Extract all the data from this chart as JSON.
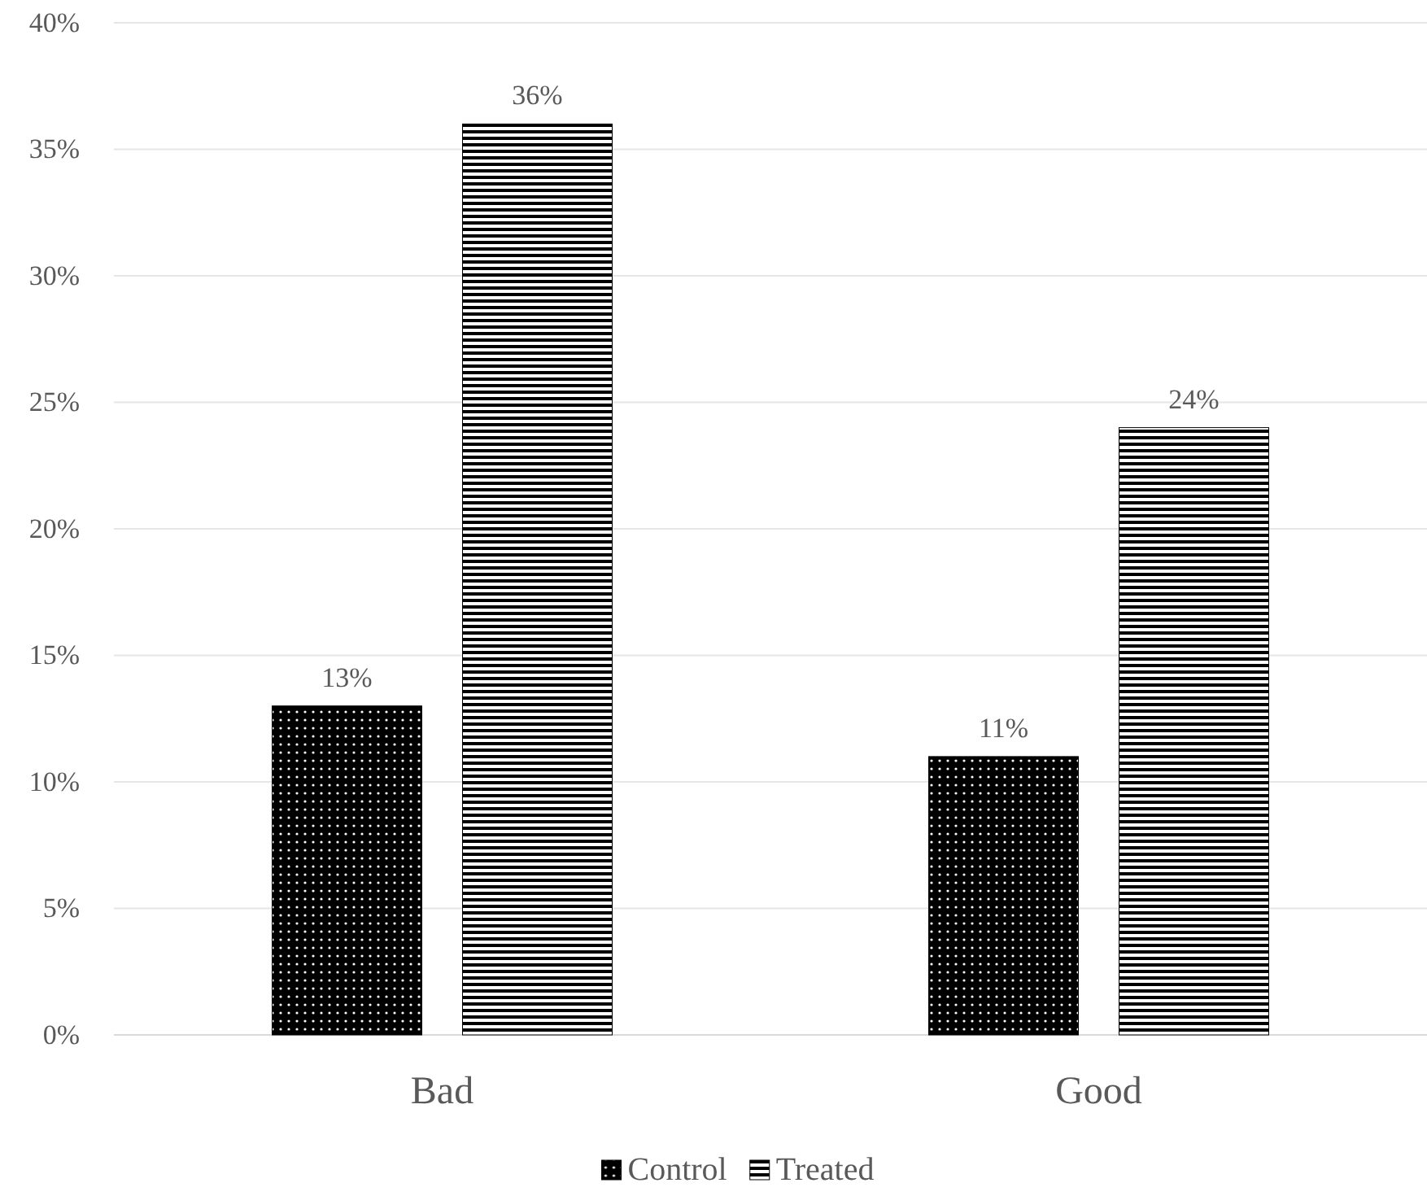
{
  "chart_data": {
    "type": "bar",
    "categories": [
      "Bad",
      "Good"
    ],
    "series": [
      {
        "name": "Control",
        "color": "#000000",
        "values": [
          13,
          11
        ],
        "value_labels": [
          "13%",
          "11%"
        ]
      },
      {
        "name": "Treated",
        "color": "#000000",
        "values": [
          36,
          24
        ],
        "value_labels": [
          "36%",
          "24%"
        ]
      }
    ],
    "ylim": [
      0,
      40
    ],
    "yticks": [
      {
        "value": 0,
        "label": "0%"
      },
      {
        "value": 5,
        "label": "5%"
      },
      {
        "value": 10,
        "label": "10%"
      },
      {
        "value": 15,
        "label": "15%"
      },
      {
        "value": 20,
        "label": "20%"
      },
      {
        "value": 25,
        "label": "25%"
      },
      {
        "value": 30,
        "label": "30%"
      },
      {
        "value": 35,
        "label": "35%"
      },
      {
        "value": 40,
        "label": "40%"
      }
    ],
    "grid": "y",
    "legend": "bottom"
  }
}
